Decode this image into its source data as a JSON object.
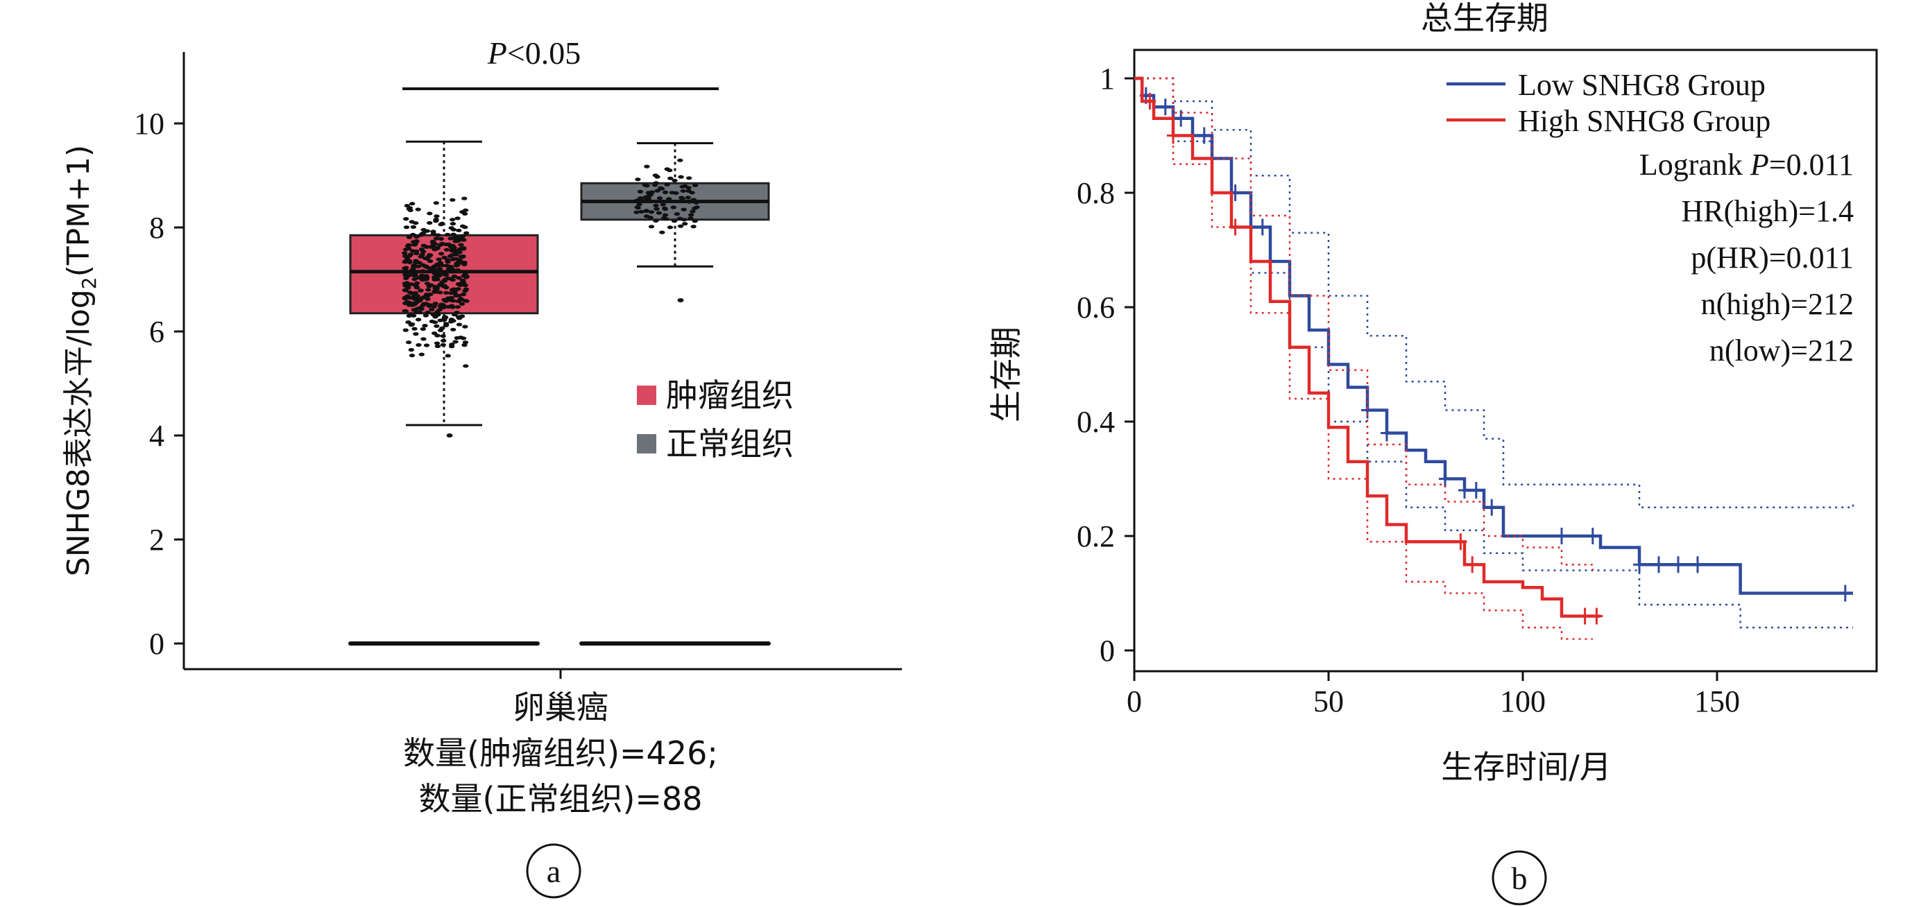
{
  "chart_data": [
    {
      "type": "box",
      "panel_label": "a",
      "ylabel": "SNHG8表达水平/log",
      "ylabel_sub": "2",
      "ylabel_tail": "(TPM+1)",
      "ylim": [
        0,
        11
      ],
      "yticks": [
        "0",
        "2",
        "4",
        "6",
        "8",
        "10"
      ],
      "significance": {
        "italic": "P",
        "text": "<0.05"
      },
      "x_labels": [
        "卵巢癌",
        "数量(肿瘤组织)=426;",
        "数量(正常组织)=88"
      ],
      "legend": [
        {
          "label": "肿瘤组织",
          "color": "#d94a62"
        },
        {
          "label": "正常组织",
          "color": "#6d7279"
        }
      ],
      "series": [
        {
          "name": "肿瘤组织",
          "color": "#d94a62",
          "n": 426,
          "min": 4.2,
          "q1": 6.35,
          "median": 7.15,
          "q3": 7.85,
          "max": 9.65,
          "outliers": [
            4.0
          ],
          "zero_line": 0
        },
        {
          "name": "正常组织",
          "color": "#6d7279",
          "n": 88,
          "min": 7.25,
          "q1": 8.15,
          "median": 8.5,
          "q3": 8.85,
          "max": 9.62,
          "outliers": [
            6.6
          ],
          "zero_line": 0
        }
      ]
    },
    {
      "type": "line",
      "panel_label": "b",
      "title": "总生存期",
      "xlabel": "生存时间/月",
      "ylabel": "生存期",
      "xlim": [
        0,
        190
      ],
      "ylim": [
        0,
        1
      ],
      "xticks": [
        "0",
        "50",
        "100",
        "150"
      ],
      "yticks": [
        "0",
        "0.2",
        "0.4",
        "0.6",
        "0.8",
        "1"
      ],
      "legend": [
        {
          "label": "Low SNHG8 Group",
          "color": "#2e4a9e"
        },
        {
          "label": "High SNHG8 Group",
          "color": "#e02a2a"
        }
      ],
      "stats": [
        {
          "pre": "Logrank ",
          "italic": "P",
          "post": "=0.011"
        },
        {
          "pre": "HR(high)=1.4",
          "italic": "",
          "post": ""
        },
        {
          "pre": "p(HR)=0.011",
          "italic": "",
          "post": ""
        },
        {
          "pre": "n(high)=212",
          "italic": "",
          "post": ""
        },
        {
          "pre": "n(low)=212",
          "italic": "",
          "post": ""
        }
      ],
      "series": [
        {
          "name": "Low SNHG8 Group",
          "color": "#2e4a9e",
          "points": [
            [
              0,
              1
            ],
            [
              2,
              0.97
            ],
            [
              5,
              0.95
            ],
            [
              10,
              0.93
            ],
            [
              15,
              0.9
            ],
            [
              20,
              0.86
            ],
            [
              25,
              0.8
            ],
            [
              30,
              0.74
            ],
            [
              35,
              0.68
            ],
            [
              40,
              0.62
            ],
            [
              45,
              0.56
            ],
            [
              50,
              0.5
            ],
            [
              55,
              0.46
            ],
            [
              60,
              0.42
            ],
            [
              65,
              0.38
            ],
            [
              70,
              0.35
            ],
            [
              75,
              0.33
            ],
            [
              80,
              0.3
            ],
            [
              85,
              0.28
            ],
            [
              90,
              0.25
            ],
            [
              95,
              0.2
            ],
            [
              110,
              0.2
            ],
            [
              120,
              0.18
            ],
            [
              130,
              0.15
            ],
            [
              155,
              0.15
            ],
            [
              156,
              0.1
            ],
            [
              185,
              0.1
            ]
          ],
          "ci_upper": [
            [
              0,
              1
            ],
            [
              10,
              0.96
            ],
            [
              20,
              0.91
            ],
            [
              30,
              0.83
            ],
            [
              40,
              0.73
            ],
            [
              50,
              0.62
            ],
            [
              60,
              0.55
            ],
            [
              70,
              0.47
            ],
            [
              80,
              0.42
            ],
            [
              90,
              0.37
            ],
            [
              95,
              0.29
            ],
            [
              130,
              0.25
            ],
            [
              155,
              0.25
            ],
            [
              185,
              0.26
            ]
          ],
          "ci_lower": [
            [
              0,
              1
            ],
            [
              10,
              0.89
            ],
            [
              20,
              0.8
            ],
            [
              30,
              0.66
            ],
            [
              40,
              0.53
            ],
            [
              50,
              0.4
            ],
            [
              60,
              0.33
            ],
            [
              70,
              0.25
            ],
            [
              80,
              0.21
            ],
            [
              90,
              0.17
            ],
            [
              100,
              0.14
            ],
            [
              130,
              0.08
            ],
            [
              155,
              0.08
            ],
            [
              156,
              0.04
            ],
            [
              185,
              0.04
            ]
          ],
          "censor_x": [
            3,
            8,
            12,
            18,
            26,
            33,
            60,
            65,
            80,
            85,
            88,
            92,
            110,
            118,
            130,
            135,
            140,
            145,
            183
          ]
        },
        {
          "name": "High SNHG8 Group",
          "color": "#e02a2a",
          "points": [
            [
              0,
              1
            ],
            [
              2,
              0.96
            ],
            [
              5,
              0.93
            ],
            [
              10,
              0.9
            ],
            [
              15,
              0.86
            ],
            [
              20,
              0.8
            ],
            [
              25,
              0.74
            ],
            [
              30,
              0.68
            ],
            [
              35,
              0.61
            ],
            [
              40,
              0.53
            ],
            [
              45,
              0.45
            ],
            [
              50,
              0.39
            ],
            [
              55,
              0.33
            ],
            [
              60,
              0.27
            ],
            [
              65,
              0.22
            ],
            [
              70,
              0.19
            ],
            [
              78,
              0.19
            ],
            [
              85,
              0.15
            ],
            [
              90,
              0.12
            ],
            [
              100,
              0.11
            ],
            [
              105,
              0.09
            ],
            [
              110,
              0.06
            ],
            [
              120,
              0.06
            ]
          ],
          "ci_upper": [
            [
              0,
              1
            ],
            [
              10,
              0.94
            ],
            [
              20,
              0.86
            ],
            [
              30,
              0.76
            ],
            [
              40,
              0.62
            ],
            [
              50,
              0.49
            ],
            [
              60,
              0.36
            ],
            [
              70,
              0.29
            ],
            [
              80,
              0.26
            ],
            [
              90,
              0.2
            ],
            [
              100,
              0.18
            ],
            [
              110,
              0.15
            ],
            [
              118,
              0.14
            ]
          ],
          "ci_lower": [
            [
              0,
              1
            ],
            [
              10,
              0.85
            ],
            [
              20,
              0.74
            ],
            [
              30,
              0.59
            ],
            [
              40,
              0.44
            ],
            [
              50,
              0.3
            ],
            [
              60,
              0.19
            ],
            [
              70,
              0.12
            ],
            [
              80,
              0.1
            ],
            [
              90,
              0.07
            ],
            [
              100,
              0.04
            ],
            [
              110,
              0.02
            ],
            [
              118,
              0.02
            ]
          ],
          "censor_x": [
            4,
            10,
            26,
            84,
            87,
            116,
            119
          ]
        }
      ]
    }
  ]
}
